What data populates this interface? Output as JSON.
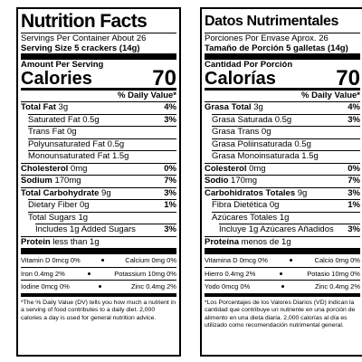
{
  "panels": [
    {
      "title": "Nutrition Facts",
      "servings": "Servings Per Container About 26",
      "serving_size": "Serving Size 5 crackers (14g)",
      "amount_label": "Amount Per Serving",
      "calories_label": "Calories",
      "calories_value": "70",
      "dv_header": "% Daily Value*",
      "nutrients": [
        {
          "name": "Total Fat",
          "amount": "3g",
          "dv": "4%"
        },
        {
          "name": "Saturated Fat",
          "amount": "0.5g",
          "dv": "3%"
        },
        {
          "name": "Trans Fat",
          "amount": "0g"
        },
        {
          "name": "Polyunsaturated Fat",
          "amount": "0.5g"
        },
        {
          "name": "Monounsaturated Fat",
          "amount": "1.5g"
        },
        {
          "name": "Cholesterol",
          "amount": "0mg",
          "dv": "0%"
        },
        {
          "name": "Sodium",
          "amount": "170mg",
          "dv": "7%"
        },
        {
          "name": "Total Carbohydrate",
          "amount": "9g",
          "dv": "3%"
        },
        {
          "name": "Dietary Fiber",
          "amount": "0g",
          "dv": "1%"
        },
        {
          "name": "Total Sugars",
          "amount": "1g"
        },
        {
          "name": "Includes 1g Added Sugars",
          "dv": "3%"
        },
        {
          "name": "Protein",
          "amount": "less than 1g"
        }
      ],
      "vitamins": [
        [
          "Vitamin D 0mcg 0%",
          "Calcium 0mg 0%"
        ],
        [
          "Iron 0.4mg 2%",
          "Potassium 10mg 0%"
        ],
        [
          "Iodine 0mcg 0%",
          "Zinc 0.4mg 2%"
        ]
      ],
      "footnote": "*The % Daily Value (DV) tells you how much a nutrient in a serving of food contributes to a daily diet. 2,000 calories a day is used for general nutrition advice."
    },
    {
      "title": "Datos Nutrimentales",
      "servings": "Porciones Por Envase Aprox. 26",
      "serving_size": "Tamaño de Porción 5 galletas (14g)",
      "amount_label": "Cantidad Por Porción",
      "calories_label": "Calorías",
      "calories_value": "70",
      "dv_header": "% Daily Value*",
      "nutrients": [
        {
          "name": "Grasa Total",
          "amount": "3g",
          "dv": "4%"
        },
        {
          "name": "Grasa Saturada",
          "amount": "0.5g",
          "dv": "3%"
        },
        {
          "name": "Grasa Trans",
          "amount": "0g"
        },
        {
          "name": "Grasa Poliinsaturada",
          "amount": "0.5g"
        },
        {
          "name": "Grasa Monoinsaturada",
          "amount": "1.5g"
        },
        {
          "name": "Colesterol",
          "amount": "0mg",
          "dv": "0%"
        },
        {
          "name": "Sodio",
          "amount": "170mg",
          "dv": "7%"
        },
        {
          "name": "Carbohidratos Totales",
          "amount": "9g",
          "dv": "3%"
        },
        {
          "name": "Fibra Dietética",
          "amount": "0g",
          "dv": "1%"
        },
        {
          "name": "Azúcares Totales",
          "amount": "1g"
        },
        {
          "name": "Incluye 1g Azúcares Añadidos",
          "dv": "3%"
        },
        {
          "name": "Proteína",
          "amount": "menos de 1g"
        }
      ],
      "vitamins": [
        [
          "Vitamina D 0mcg 0%",
          "Calcio 0mg 0%"
        ],
        [
          "Hierro 0.4mg 2%",
          "Potasio 10mg 0%"
        ],
        [
          "Yodo 0mcg 0%",
          "Zinc 0.4mg 2%"
        ]
      ],
      "footnote": "*Los Porcentajes de los Valores Diarios (VD) indican la cantidad que contribuye un nutriente en una porción de alimento en una dieta diaria. 2,000 calorías al día es utilizado como recomendación nutrimental general."
    }
  ]
}
